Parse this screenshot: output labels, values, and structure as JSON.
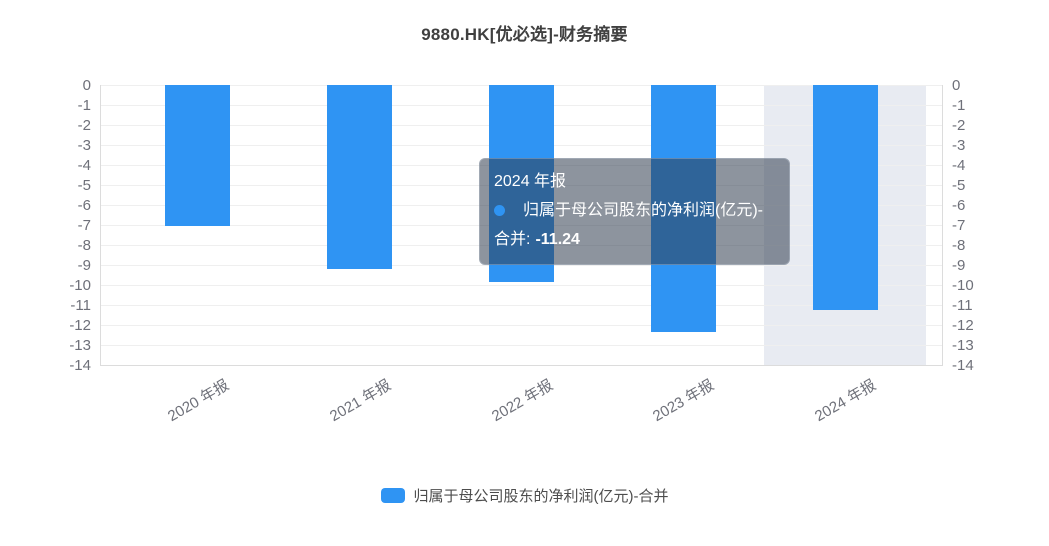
{
  "title": "9880.HK[优必选]-财务摘要",
  "colors": {
    "bar": "#2f94f3",
    "highlight_band": "#e0e4ed",
    "tooltip_background": "#303c4e",
    "gridline": "#efefef",
    "axis_line": "#dcdcdc",
    "axis_label": "#6e7079"
  },
  "chart_data": {
    "type": "bar",
    "title": "9880.HK[优必选]-财务摘要",
    "categories": [
      "2020 年报",
      "2021 年报",
      "2022 年报",
      "2023 年报",
      "2024 年报"
    ],
    "series": [
      {
        "name": "归属于母公司股东的净利润(亿元)-合并",
        "values": [
          -7.07,
          -9.18,
          -9.87,
          -12.34,
          -11.24
        ]
      }
    ],
    "xlabel": "",
    "ylabel": "",
    "ylim": [
      -14,
      0
    ],
    "y_ticks": [
      "0",
      "-1",
      "-2",
      "-3",
      "-4",
      "-5",
      "-6",
      "-7",
      "-8",
      "-9",
      "-10",
      "-11",
      "-12",
      "-13",
      "-14"
    ],
    "grid": true,
    "legend_position": "bottom",
    "highlighted_category_index": 4
  },
  "tooltip": {
    "header": "2024 年报",
    "series_label": "归属于母公司股东的净利润(亿元)-合并:",
    "value": "-11.24"
  },
  "legend": {
    "label": "归属于母公司股东的净利润(亿元)-合并"
  }
}
